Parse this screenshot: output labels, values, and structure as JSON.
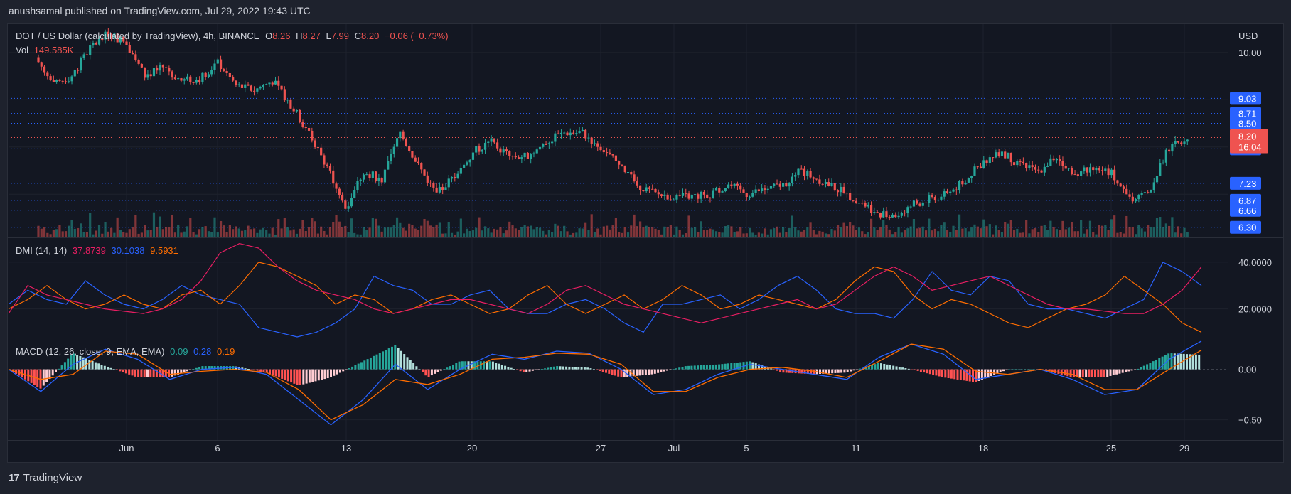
{
  "published": "anushsamal published on TradingView.com, Jul 29, 2022 19:43 UTC",
  "footer": {
    "brand": "TradingView"
  },
  "currency": "USD",
  "main_legend": {
    "symbol": "DOT / US Dollar (calculated by TradingView), 4h, BINANCE",
    "o_label": "O",
    "o": "8.26",
    "h_label": "H",
    "h": "8.27",
    "l_label": "L",
    "l": "7.99",
    "c_label": "C",
    "c": "8.20",
    "change": "−0.06 (−0.73%)",
    "vol_label": "Vol",
    "vol": "149.585K"
  },
  "dmi_legend": {
    "label": "DMI (14, 14)",
    "v1": "37.8739",
    "v2": "30.1038",
    "v3": "9.5931"
  },
  "macd_legend": {
    "label": "MACD (12, 26, close, 9, EMA, EMA)",
    "v1": "0.09",
    "v2": "0.28",
    "v3": "0.19"
  },
  "price_axis": [
    "10.00",
    "9.03",
    "8.71",
    "8.50",
    "7.96",
    "7.23",
    "6.87",
    "6.66",
    "6.30"
  ],
  "current_price": {
    "value": "8.20",
    "countdown": "16:04"
  },
  "dmi_axis": [
    "40.0000",
    "20.0000"
  ],
  "macd_axis": [
    "0.00",
    "−0.50"
  ],
  "time_axis": [
    "Jun",
    "6",
    "13",
    "20",
    "27",
    "Jul",
    "5",
    "11",
    "18",
    "25",
    "29"
  ],
  "colors": {
    "up": "#26a69a",
    "down": "#ef5350",
    "blue": "#2962ff",
    "orange": "#ff6d00",
    "crimson": "#e91e63",
    "bg": "#131722"
  },
  "chart_data": [
    {
      "type": "candlestick",
      "title": "DOT / US Dollar (calculated by TradingView), 4h, BINANCE",
      "ylabel": "USD",
      "ylim": [
        6.1,
        10.6
      ],
      "xlim": [
        "May 27",
        "Jul 30"
      ],
      "x_ticks": [
        "Jun",
        "6",
        "13",
        "20",
        "27",
        "Jul",
        "5",
        "11",
        "18",
        "25",
        "29"
      ],
      "close_path": [
        {
          "x": "May 27",
          "y": 9.9
        },
        {
          "x": "May 28",
          "y": 9.3
        },
        {
          "x": "May 29",
          "y": 9.5
        },
        {
          "x": "May 30",
          "y": 10.1
        },
        {
          "x": "May 31",
          "y": 10.4
        },
        {
          "x": "Jun 1",
          "y": 10.2
        },
        {
          "x": "Jun 2",
          "y": 9.5
        },
        {
          "x": "Jun 3",
          "y": 9.7
        },
        {
          "x": "Jun 4",
          "y": 9.4
        },
        {
          "x": "Jun 5",
          "y": 9.45
        },
        {
          "x": "Jun 6",
          "y": 9.8
        },
        {
          "x": "Jun 7",
          "y": 9.3
        },
        {
          "x": "Jun 8",
          "y": 9.2
        },
        {
          "x": "Jun 9",
          "y": 9.4
        },
        {
          "x": "Jun 10",
          "y": 8.9
        },
        {
          "x": "Jun 11",
          "y": 8.3
        },
        {
          "x": "Jun 12",
          "y": 7.6
        },
        {
          "x": "Jun 13",
          "y": 6.7
        },
        {
          "x": "Jun 14",
          "y": 7.5
        },
        {
          "x": "Jun 15",
          "y": 7.3
        },
        {
          "x": "Jun 16",
          "y": 8.3
        },
        {
          "x": "Jun 17",
          "y": 7.6
        },
        {
          "x": "Jun 18",
          "y": 7.0
        },
        {
          "x": "Jun 19",
          "y": 7.4
        },
        {
          "x": "Jun 20",
          "y": 7.9
        },
        {
          "x": "Jun 21",
          "y": 8.1
        },
        {
          "x": "Jun 22",
          "y": 7.8
        },
        {
          "x": "Jun 23",
          "y": 7.8
        },
        {
          "x": "Jun 24",
          "y": 8.1
        },
        {
          "x": "Jun 25",
          "y": 8.3
        },
        {
          "x": "Jun 26",
          "y": 8.3
        },
        {
          "x": "Jun 27",
          "y": 8.0
        },
        {
          "x": "Jun 28",
          "y": 7.6
        },
        {
          "x": "Jun 29",
          "y": 7.2
        },
        {
          "x": "Jun 30",
          "y": 7.0
        },
        {
          "x": "Jul 1",
          "y": 6.95
        },
        {
          "x": "Jul 2",
          "y": 6.95
        },
        {
          "x": "Jul 3",
          "y": 7.0
        },
        {
          "x": "Jul 4",
          "y": 7.2
        },
        {
          "x": "Jul 5",
          "y": 7.0
        },
        {
          "x": "Jul 6",
          "y": 7.1
        },
        {
          "x": "Jul 7",
          "y": 7.2
        },
        {
          "x": "Jul 8",
          "y": 7.5
        },
        {
          "x": "Jul 9",
          "y": 7.3
        },
        {
          "x": "Jul 10",
          "y": 7.1
        },
        {
          "x": "Jul 11",
          "y": 6.9
        },
        {
          "x": "Jul 12",
          "y": 6.65
        },
        {
          "x": "Jul 13",
          "y": 6.5
        },
        {
          "x": "Jul 14",
          "y": 6.75
        },
        {
          "x": "Jul 15",
          "y": 6.9
        },
        {
          "x": "Jul 16",
          "y": 7.0
        },
        {
          "x": "Jul 17",
          "y": 7.3
        },
        {
          "x": "Jul 18",
          "y": 7.7
        },
        {
          "x": "Jul 19",
          "y": 7.9
        },
        {
          "x": "Jul 20",
          "y": 7.6
        },
        {
          "x": "Jul 21",
          "y": 7.5
        },
        {
          "x": "Jul 22",
          "y": 7.8
        },
        {
          "x": "Jul 23",
          "y": 7.4
        },
        {
          "x": "Jul 24",
          "y": 7.6
        },
        {
          "x": "Jul 25",
          "y": 7.45
        },
        {
          "x": "Jul 26",
          "y": 6.9
        },
        {
          "x": "Jul 27",
          "y": 7.0
        },
        {
          "x": "Jul 28",
          "y": 7.9
        },
        {
          "x": "Jul 29",
          "y": 8.2
        }
      ],
      "levels": [
        9.03,
        8.71,
        8.5,
        7.96,
        7.23,
        6.87,
        6.66,
        6.3
      ],
      "last": 8.2
    },
    {
      "type": "line",
      "title": "DMI (14, 14)",
      "ylim": [
        8,
        50
      ],
      "series": [
        {
          "values": [
            22,
            28,
            24,
            22,
            32,
            26,
            22,
            20,
            24,
            30,
            26,
            24,
            22,
            12,
            10,
            8,
            10,
            14,
            20,
            34,
            30,
            28,
            22,
            22,
            26,
            28,
            20,
            18,
            18,
            22,
            24,
            20,
            14,
            10,
            22,
            22,
            24,
            26,
            20,
            24,
            30,
            34,
            28,
            20,
            18,
            18,
            16,
            24,
            36,
            28,
            26,
            34,
            32,
            22,
            20,
            20,
            18,
            16,
            20,
            24,
            40,
            36,
            30
          ]
        },
        {
          "values": [
            20,
            24,
            30,
            24,
            20,
            22,
            26,
            22,
            20,
            26,
            28,
            22,
            30,
            40,
            38,
            34,
            30,
            22,
            26,
            24,
            18,
            20,
            24,
            26,
            22,
            18,
            20,
            26,
            30,
            22,
            18,
            22,
            26,
            20,
            24,
            30,
            26,
            20,
            22,
            26,
            24,
            22,
            20,
            24,
            32,
            38,
            36,
            26,
            20,
            24,
            22,
            18,
            14,
            12,
            16,
            20,
            22,
            26,
            34,
            28,
            22,
            14,
            10
          ]
        },
        {
          "values": [
            18,
            30,
            26,
            24,
            22,
            20,
            19,
            18,
            20,
            24,
            32,
            44,
            48,
            46,
            38,
            32,
            28,
            26,
            24,
            20,
            18,
            20,
            22,
            24,
            24,
            22,
            20,
            18,
            22,
            28,
            30,
            26,
            22,
            20,
            18,
            16,
            14,
            16,
            18,
            20,
            22,
            24,
            20,
            22,
            28,
            34,
            38,
            34,
            28,
            30,
            32,
            34,
            30,
            26,
            22,
            20,
            20,
            19,
            18,
            18,
            22,
            28,
            38
          ]
        }
      ]
    },
    {
      "type": "line",
      "title": "MACD (12, 26, close, 9, EMA, EMA)",
      "ylim": [
        -0.7,
        0.3
      ],
      "series": [
        {
          "values": [
            0.0,
            -0.22,
            0.05,
            0.2,
            0.1,
            -0.1,
            0.0,
            0.02,
            -0.05,
            -0.3,
            -0.55,
            -0.3,
            0.05,
            -0.2,
            0.0,
            0.15,
            0.1,
            0.18,
            0.16,
            0.0,
            -0.25,
            -0.2,
            -0.05,
            0.05,
            0.0,
            -0.05,
            -0.1,
            0.12,
            0.25,
            0.15,
            -0.1,
            -0.05,
            0.0,
            -0.1,
            -0.25,
            -0.2,
            0.1,
            0.28
          ]
        },
        {
          "values": [
            0.0,
            -0.1,
            -0.05,
            0.18,
            0.15,
            -0.05,
            -0.02,
            0.0,
            -0.03,
            -0.2,
            -0.5,
            -0.35,
            -0.1,
            -0.15,
            -0.05,
            0.1,
            0.12,
            0.16,
            0.15,
            0.05,
            -0.22,
            -0.22,
            -0.08,
            0.0,
            0.02,
            -0.02,
            -0.08,
            0.08,
            0.25,
            0.2,
            -0.02,
            -0.05,
            0.0,
            -0.05,
            -0.2,
            -0.2,
            0.0,
            0.19
          ]
        }
      ],
      "last": {
        "hist": 0.09,
        "macd": 0.28,
        "signal": 0.19
      }
    }
  ]
}
